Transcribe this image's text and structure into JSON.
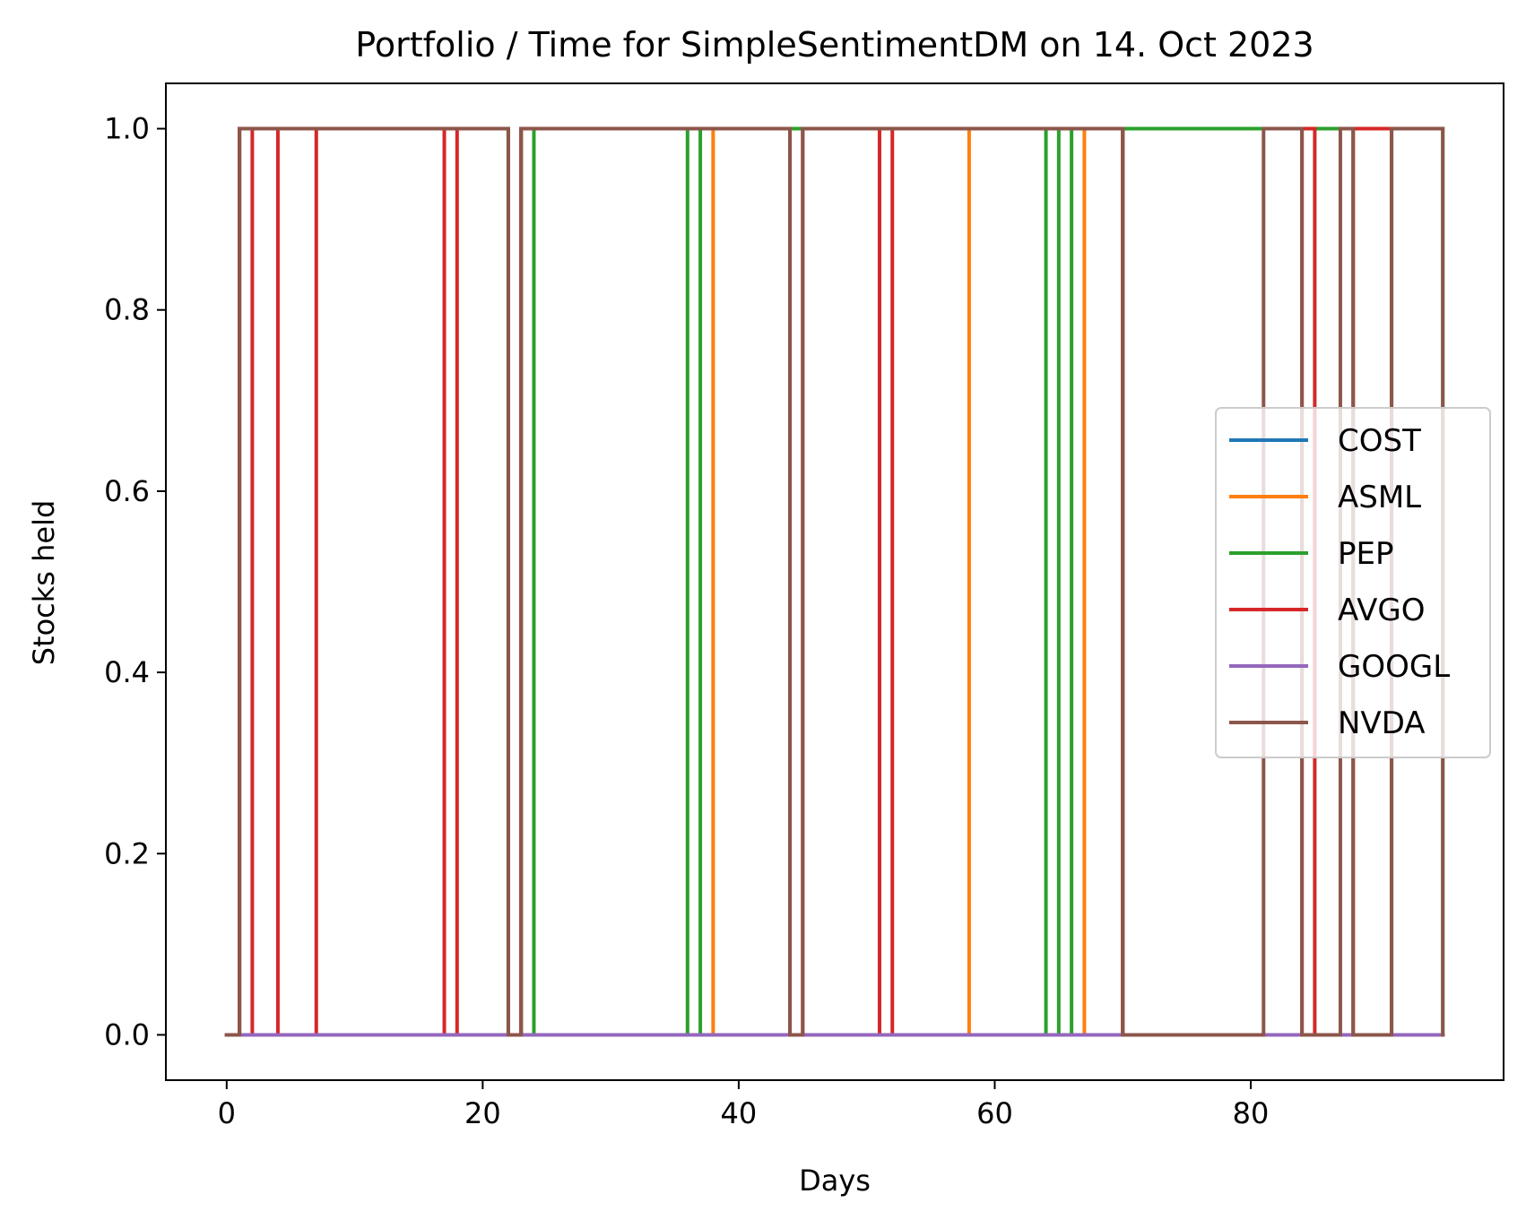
{
  "chart_data": {
    "type": "line",
    "title": "Portfolio / Time for SimpleSentimentDM on 14. Oct 2023",
    "xlabel": "Days",
    "ylabel": "Stocks held",
    "xlim": [
      -4.75,
      99.75
    ],
    "ylim": [
      -0.05,
      1.05
    ],
    "xticks": [
      0,
      20,
      40,
      60,
      80
    ],
    "xtick_labels": [
      "0",
      "20",
      "40",
      "60",
      "80"
    ],
    "yticks": [
      0.0,
      0.2,
      0.4,
      0.6,
      0.8,
      1.0
    ],
    "ytick_labels": [
      "0.0",
      "0.2",
      "0.4",
      "0.6",
      "0.8",
      "1.0"
    ],
    "grid": false,
    "legend_position": "center-right",
    "x_domain": [
      0,
      95
    ],
    "series": [
      {
        "name": "COST",
        "color": "#1f77b4",
        "segments": []
      },
      {
        "name": "ASML",
        "color": "#ff7f0e",
        "segments": [
          [
            1,
            22
          ],
          [
            23,
            38
          ],
          [
            44,
            58
          ],
          [
            67,
            70
          ]
        ]
      },
      {
        "name": "PEP",
        "color": "#2ca02c",
        "segments": [
          [
            1,
            22
          ],
          [
            23,
            24
          ],
          [
            36,
            37
          ],
          [
            44,
            64
          ],
          [
            65,
            66
          ],
          [
            70,
            95
          ]
        ]
      },
      {
        "name": "AVGO",
        "color": "#d62728",
        "segments": [
          [
            1,
            2
          ],
          [
            4,
            7
          ],
          [
            17,
            18
          ],
          [
            23,
            44
          ],
          [
            45,
            51
          ],
          [
            52,
            70
          ],
          [
            84,
            85
          ],
          [
            88,
            91
          ]
        ]
      },
      {
        "name": "GOOGL",
        "color": "#9467bd",
        "segments": []
      },
      {
        "name": "NVDA",
        "color": "#8c564b",
        "segments": [
          [
            1,
            22
          ],
          [
            23,
            44
          ],
          [
            45,
            70
          ],
          [
            81,
            84
          ],
          [
            87,
            88
          ],
          [
            91,
            95
          ]
        ]
      }
    ]
  }
}
